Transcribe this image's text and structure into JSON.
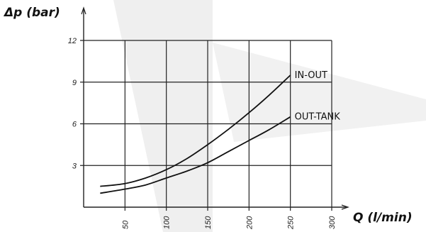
{
  "chart_data": {
    "type": "line",
    "ylabel": "Δp (bar)",
    "xlabel": "Q (l/min)",
    "xlim": [
      0,
      300
    ],
    "ylim": [
      0,
      12
    ],
    "x_ticks": [
      50,
      100,
      150,
      200,
      250,
      300
    ],
    "y_ticks": [
      3,
      6,
      9,
      12
    ],
    "x_tick_labels": [
      "50",
      "100",
      "150",
      "200",
      "250",
      "300"
    ],
    "y_tick_labels": [
      "3",
      "6",
      "9",
      "12"
    ],
    "grid": true,
    "series": [
      {
        "name": "IN-OUT",
        "x": [
          20,
          50,
          75,
          100,
          125,
          150,
          175,
          200,
          225,
          250
        ],
        "y": [
          1.5,
          1.7,
          2.1,
          2.7,
          3.5,
          4.5,
          5.6,
          6.8,
          8.1,
          9.5
        ]
      },
      {
        "name": "OUT-TANK",
        "x": [
          20,
          50,
          75,
          100,
          125,
          150,
          175,
          200,
          225,
          250
        ],
        "y": [
          1.0,
          1.3,
          1.6,
          2.1,
          2.6,
          3.2,
          4.0,
          4.8,
          5.6,
          6.5
        ]
      }
    ]
  },
  "colors": {
    "line": "#111111",
    "grid": "#222222",
    "watermark": "#ededed"
  }
}
